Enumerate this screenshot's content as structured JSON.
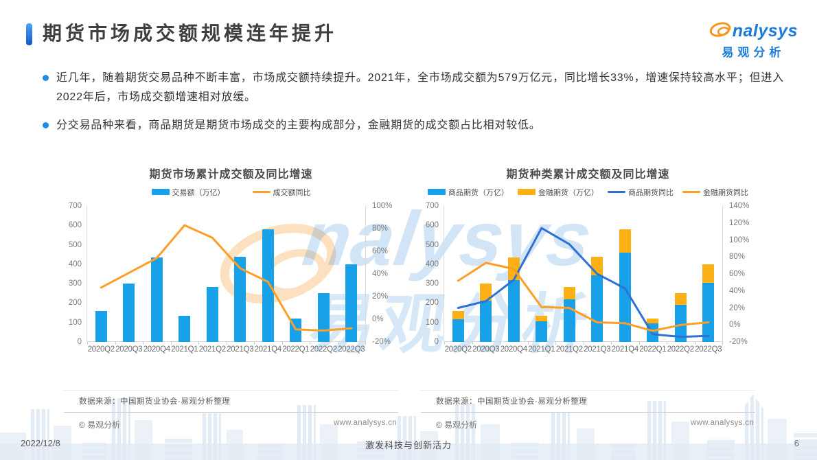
{
  "page": {
    "title": "期货市场成交额规模连年提升",
    "logo": {
      "brand": "analysys",
      "brand_tail": "nalysys",
      "brand_cn": "易观分析"
    },
    "watermark": {
      "brand_tail": "nalysys",
      "brand_cn": "易观分析"
    },
    "footer": {
      "date": "2022/12/8",
      "slogan": "激发科技与创新活力",
      "page_number": "6"
    },
    "colors": {
      "accent": "#2B7DE0",
      "brand_blue": "#1B7CD9",
      "brand_orange": "#F7941E",
      "bar_blue": "#18A0E8",
      "bar_yellow": "#FBB116",
      "line_orange": "#FF9E27",
      "line_blue": "#2E71D2"
    }
  },
  "bullets": [
    "近几年，随着期货交易品种不断丰富，市场成交额持续提升。2021年，全市场成交额为579万亿元，同比增长33%，增速保持较高水平；但进入2022年后，市场成交额增速相对放缓。",
    "分交易品种来看，商品期货是期货市场成交的主要构成部分，金融期货的成交额占比相对较低。"
  ],
  "chart_data": [
    {
      "type": "bar",
      "title": "期货市场累计成交额及同比增速",
      "categories": [
        "2020Q2",
        "2020Q3",
        "2020Q4",
        "2021Q1",
        "2021Q2",
        "2021Q3",
        "2021Q4",
        "2022Q1",
        "2022Q2",
        "2022Q3"
      ],
      "series": [
        {
          "name": "交易额（万亿）",
          "type": "bar",
          "axis": "left",
          "color": "#18A0E8",
          "values": [
            160,
            300,
            435,
            135,
            283,
            437,
            579,
            122,
            252,
            400
          ]
        },
        {
          "name": "成交额同比",
          "type": "line",
          "axis": "right",
          "color": "#FF9E27",
          "values": [
            28,
            41,
            54,
            83,
            72,
            45,
            33,
            -9,
            -10,
            -8
          ]
        }
      ],
      "left_axis": {
        "min": 0,
        "max": 700,
        "ticks": [
          "700",
          "600",
          "500",
          "400",
          "300",
          "200",
          "100",
          "0"
        ]
      },
      "right_axis": {
        "min": -20,
        "max": 100,
        "ticks": [
          "100%",
          "80%",
          "60%",
          "40%",
          "20%",
          "0%",
          "-20%"
        ]
      },
      "legend_position": "top",
      "grid": false,
      "source": "数据来源：中国期货业协会·易观分析整理",
      "copyright": "© 易观分析",
      "website": "www.analysys.cn"
    },
    {
      "type": "bar",
      "title": "期货种类累计成交额及同比增速",
      "categories": [
        "2020Q2",
        "2020Q3",
        "2020Q4",
        "2021Q1",
        "2021Q2",
        "2021Q3",
        "2021Q4",
        "2022Q1",
        "2022Q2",
        "2022Q3"
      ],
      "series": [
        {
          "name": "商品期货（万亿）",
          "type": "bar",
          "stack": true,
          "axis": "left",
          "color": "#18A0E8",
          "values": [
            115,
            212,
            320,
            105,
            218,
            342,
            460,
            95,
            192,
            303
          ]
        },
        {
          "name": "金融期货（万亿）",
          "type": "bar",
          "stack": true,
          "axis": "left",
          "color": "#FBB116",
          "values": [
            45,
            88,
            115,
            30,
            65,
            95,
            119,
            27,
            60,
            97
          ]
        },
        {
          "name": "商品期货同比",
          "type": "line",
          "axis": "right",
          "color": "#2E71D2",
          "values": [
            20,
            28,
            53,
            114,
            95,
            60,
            43,
            -11,
            -14,
            -13
          ]
        },
        {
          "name": "金融期货同比",
          "type": "line",
          "axis": "right",
          "color": "#FF9E27",
          "values": [
            52,
            73,
            66,
            21,
            20,
            3,
            2,
            -7,
            0,
            3
          ]
        }
      ],
      "left_axis": {
        "min": 0,
        "max": 700,
        "ticks": [
          "700",
          "600",
          "500",
          "400",
          "300",
          "200",
          "100",
          "0"
        ]
      },
      "right_axis": {
        "min": -20,
        "max": 140,
        "ticks": [
          "140%",
          "120%",
          "100%",
          "80%",
          "60%",
          "40%",
          "20%",
          "0%",
          "-20%"
        ]
      },
      "legend_position": "top",
      "grid": false,
      "source": "数据来源：中国期货业协会·易观分析整理",
      "copyright": "© 易观分析",
      "website": "www.analysys.cn"
    }
  ]
}
